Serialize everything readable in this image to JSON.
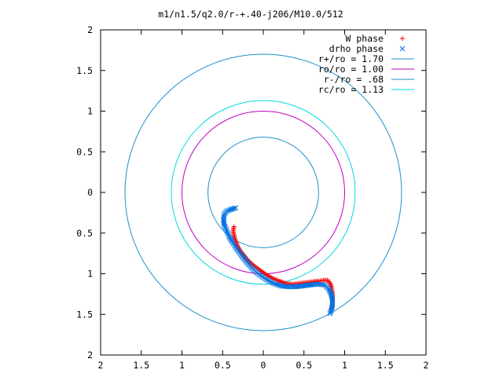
{
  "chart_data": {
    "type": "scatter",
    "title": "m1/n1.5/q2.0/r-+.40-j206/M10.0/512",
    "xlabel": "",
    "ylabel": "",
    "xlim": [
      -2,
      2
    ],
    "ylim": [
      -2,
      2
    ],
    "grid": false,
    "legend_position": "top-right",
    "x_tick_values": [
      -2,
      -1.5,
      -1,
      -0.5,
      0,
      0.5,
      1,
      1.5,
      2
    ],
    "y_tick_values": [
      -2,
      -1.5,
      -1,
      -0.5,
      0,
      0.5,
      1,
      1.5,
      2
    ],
    "x_tick_labels": [
      "2",
      "1.5",
      "1",
      "0.5",
      "0",
      "0.5",
      "1",
      "1.5",
      "2"
    ],
    "y_tick_labels": [
      "2",
      "1.5",
      "1",
      "0.5",
      "0",
      "0.5",
      "1",
      "1.5",
      "2"
    ],
    "circles": [
      {
        "name": "r+/ro = 1.70",
        "radius": 1.7,
        "color": "#1e90d0"
      },
      {
        "name": "ro/ro = 1.00",
        "radius": 1.0,
        "color": "#c000c0"
      },
      {
        "name": "r-/ro = .68",
        "radius": 0.68,
        "color": "#1e90d0"
      },
      {
        "name": "rc/ro = 1.13",
        "radius": 1.13,
        "color": "#00d8d8"
      }
    ],
    "series": [
      {
        "name": "W phase",
        "marker": "plus",
        "color": "#ff0000",
        "points": [
          [
            -0.36,
            -0.42
          ],
          [
            -0.37,
            -0.47
          ],
          [
            -0.36,
            -0.52
          ],
          [
            -0.35,
            -0.57
          ],
          [
            -0.33,
            -0.62
          ],
          [
            -0.31,
            -0.67
          ],
          [
            -0.28,
            -0.72
          ],
          [
            -0.24,
            -0.77
          ],
          [
            -0.2,
            -0.82
          ],
          [
            -0.15,
            -0.87
          ],
          [
            -0.09,
            -0.92
          ],
          [
            -0.02,
            -0.97
          ],
          [
            0.05,
            -1.02
          ],
          [
            0.12,
            -1.06
          ],
          [
            0.2,
            -1.09
          ],
          [
            0.28,
            -1.12
          ],
          [
            0.36,
            -1.13
          ],
          [
            0.44,
            -1.12
          ],
          [
            0.52,
            -1.11
          ],
          [
            0.6,
            -1.1
          ],
          [
            0.68,
            -1.09
          ],
          [
            0.74,
            -1.08
          ],
          [
            0.79,
            -1.08
          ],
          [
            0.82,
            -1.11
          ],
          [
            0.84,
            -1.17
          ],
          [
            0.85,
            -1.24
          ],
          [
            0.85,
            -1.31
          ],
          [
            0.85,
            -1.37
          ],
          [
            0.84,
            -1.43
          ]
        ]
      },
      {
        "name": "drho phase",
        "marker": "x",
        "color": "#0070e0",
        "points": [
          [
            -0.34,
            -0.19
          ],
          [
            -0.4,
            -0.21
          ],
          [
            -0.45,
            -0.23
          ],
          [
            -0.48,
            -0.27
          ],
          [
            -0.49,
            -0.33
          ],
          [
            -0.48,
            -0.4
          ],
          [
            -0.45,
            -0.47
          ],
          [
            -0.42,
            -0.54
          ],
          [
            -0.38,
            -0.61
          ],
          [
            -0.33,
            -0.69
          ],
          [
            -0.27,
            -0.77
          ],
          [
            -0.2,
            -0.86
          ],
          [
            -0.13,
            -0.94
          ],
          [
            -0.05,
            -1.01
          ],
          [
            0.04,
            -1.07
          ],
          [
            0.13,
            -1.12
          ],
          [
            0.22,
            -1.15
          ],
          [
            0.31,
            -1.16
          ],
          [
            0.4,
            -1.16
          ],
          [
            0.48,
            -1.15
          ],
          [
            0.56,
            -1.14
          ],
          [
            0.63,
            -1.13
          ],
          [
            0.7,
            -1.13
          ],
          [
            0.76,
            -1.14
          ],
          [
            0.8,
            -1.18
          ],
          [
            0.83,
            -1.24
          ],
          [
            0.85,
            -1.31
          ],
          [
            0.85,
            -1.38
          ],
          [
            0.84,
            -1.44
          ],
          [
            0.82,
            -1.49
          ]
        ]
      }
    ]
  }
}
